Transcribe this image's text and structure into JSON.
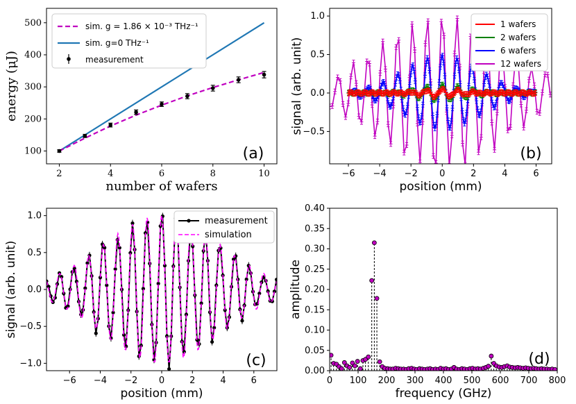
{
  "colors": {
    "magenta": "#c000c0",
    "steel": "#1f77b4",
    "red": "#ff0000",
    "green": "#008000",
    "blue": "#0000ff",
    "black": "#000000"
  },
  "chart_data": [
    {
      "id": "a",
      "type": "line",
      "panel_label": "(a)",
      "xlabel": "number of wafers",
      "ylabel": "energy (μJ)",
      "xlim": [
        1.5,
        10.5
      ],
      "ylim": [
        60,
        545
      ],
      "xticks": [
        2,
        4,
        6,
        8,
        10
      ],
      "yticks": [
        100,
        200,
        300,
        400,
        500
      ],
      "legend": [
        "sim.  g = 1.86 × 10⁻³ THz⁻¹",
        "sim.  g=0 THz⁻¹",
        "measurement"
      ],
      "series": [
        {
          "name": "sim. g=1.86e-3",
          "style": "dashed",
          "color": "#c000c0",
          "x": [
            2,
            3,
            4,
            5,
            6,
            7,
            8,
            9,
            10
          ],
          "y": [
            100,
            140,
            178,
            212,
            243,
            272,
            298,
            322,
            345
          ]
        },
        {
          "name": "sim. g=0",
          "style": "solid",
          "color": "#1f77b4",
          "x": [
            2,
            10
          ],
          "y": [
            100,
            500
          ]
        },
        {
          "name": "measurement",
          "style": "errorbar",
          "color": "#000000",
          "x": [
            2,
            3,
            4,
            5,
            6,
            7,
            8,
            9,
            10
          ],
          "y": [
            100,
            147,
            181,
            221,
            246,
            271,
            296,
            322,
            338
          ],
          "err": [
            4,
            5,
            6,
            7,
            7,
            8,
            9,
            9,
            10
          ]
        }
      ]
    },
    {
      "id": "b",
      "type": "line",
      "panel_label": "(b)",
      "xlabel": "position (mm)",
      "ylabel": "signal (arb. unit)",
      "xlim": [
        -7.2,
        7.0
      ],
      "ylim": [
        -0.92,
        1.1
      ],
      "xticks": [
        -6,
        -4,
        -2,
        0,
        2,
        4,
        6
      ],
      "yticks": [
        -0.5,
        0.0,
        0.5,
        1.0
      ],
      "legend_position": "top-right",
      "series": [
        {
          "name": "1 wafers",
          "color": "#ff0000",
          "amplitude": 0.05,
          "width_mm": 1.2,
          "period_mm": 1.0,
          "range_mm": [
            -6,
            6
          ]
        },
        {
          "name": "2 wafers",
          "color": "#008000",
          "amplitude": 0.1,
          "width_mm": 1.5,
          "period_mm": 1.0,
          "range_mm": [
            -6,
            6
          ]
        },
        {
          "name": "6 wafers",
          "color": "#0000ff",
          "amplitude": 0.48,
          "width_mm": 2.4,
          "period_mm": 0.95,
          "range_mm": [
            -6,
            6
          ]
        },
        {
          "name": "12 wafers",
          "color": "#c000c0",
          "amplitude": 1.0,
          "width_mm": 4.0,
          "period_mm": 0.95,
          "range_mm": [
            -7.2,
            7.0
          ]
        }
      ]
    },
    {
      "id": "c",
      "type": "line",
      "panel_label": "(c)",
      "xlabel": "position (mm)",
      "ylabel": "signal (arb. unit)",
      "xlim": [
        -7.5,
        7.5
      ],
      "ylim": [
        -1.1,
        1.1
      ],
      "xticks": [
        -6,
        -4,
        -2,
        0,
        2,
        4,
        6
      ],
      "yticks": [
        -1.0,
        -0.5,
        0.0,
        0.5,
        1.0
      ],
      "legend_position": "top-right",
      "series": [
        {
          "name": "measurement",
          "color": "#000000",
          "style": "marker-line",
          "amplitude": 1.0,
          "width_mm": 3.8,
          "period_mm": 0.95
        },
        {
          "name": "simulation",
          "color": "#ff00ff",
          "style": "dashed",
          "amplitude": 1.0,
          "width_mm": 3.8,
          "period_mm": 0.95
        }
      ]
    },
    {
      "id": "d",
      "type": "scatter",
      "panel_label": "(d)",
      "xlabel": "frequency (GHz)",
      "ylabel": "amplitude",
      "xlim": [
        0,
        800
      ],
      "ylim": [
        0,
        0.4
      ],
      "xticks": [
        0,
        100,
        200,
        300,
        400,
        500,
        600,
        700,
        800
      ],
      "yticks": [
        0.0,
        0.05,
        0.1,
        0.15,
        0.2,
        0.25,
        0.3,
        0.35,
        0.4
      ],
      "peaks": [
        {
          "x": 148,
          "y": 0.222
        },
        {
          "x": 157,
          "y": 0.315
        },
        {
          "x": 166,
          "y": 0.178
        }
      ],
      "points": [
        {
          "x": 5,
          "y": 0.038
        },
        {
          "x": 14,
          "y": 0.018
        },
        {
          "x": 24,
          "y": 0.016
        },
        {
          "x": 33,
          "y": 0.01
        },
        {
          "x": 42,
          "y": 0.005
        },
        {
          "x": 52,
          "y": 0.02
        },
        {
          "x": 61,
          "y": 0.012
        },
        {
          "x": 70,
          "y": 0.008
        },
        {
          "x": 80,
          "y": 0.019
        },
        {
          "x": 89,
          "y": 0.012
        },
        {
          "x": 98,
          "y": 0.023
        },
        {
          "x": 108,
          "y": 0.005
        },
        {
          "x": 117,
          "y": 0.025
        },
        {
          "x": 126,
          "y": 0.028
        },
        {
          "x": 136,
          "y": 0.034
        },
        {
          "x": 176,
          "y": 0.022
        },
        {
          "x": 185,
          "y": 0.01
        },
        {
          "x": 194,
          "y": 0.006
        },
        {
          "x": 204,
          "y": 0.005
        },
        {
          "x": 213,
          "y": 0.004
        },
        {
          "x": 222,
          "y": 0.004
        },
        {
          "x": 232,
          "y": 0.006
        },
        {
          "x": 241,
          "y": 0.005
        },
        {
          "x": 250,
          "y": 0.004
        },
        {
          "x": 260,
          "y": 0.004
        },
        {
          "x": 269,
          "y": 0.003
        },
        {
          "x": 278,
          "y": 0.005
        },
        {
          "x": 288,
          "y": 0.006
        },
        {
          "x": 297,
          "y": 0.004
        },
        {
          "x": 306,
          "y": 0.003
        },
        {
          "x": 316,
          "y": 0.005
        },
        {
          "x": 325,
          "y": 0.004
        },
        {
          "x": 334,
          "y": 0.003
        },
        {
          "x": 344,
          "y": 0.004
        },
        {
          "x": 353,
          "y": 0.005
        },
        {
          "x": 362,
          "y": 0.003
        },
        {
          "x": 372,
          "y": 0.004
        },
        {
          "x": 381,
          "y": 0.003
        },
        {
          "x": 390,
          "y": 0.006
        },
        {
          "x": 400,
          "y": 0.004
        },
        {
          "x": 409,
          "y": 0.005
        },
        {
          "x": 418,
          "y": 0.003
        },
        {
          "x": 428,
          "y": 0.004
        },
        {
          "x": 437,
          "y": 0.008
        },
        {
          "x": 446,
          "y": 0.004
        },
        {
          "x": 456,
          "y": 0.003
        },
        {
          "x": 465,
          "y": 0.005
        },
        {
          "x": 474,
          "y": 0.004
        },
        {
          "x": 484,
          "y": 0.003
        },
        {
          "x": 493,
          "y": 0.005
        },
        {
          "x": 502,
          "y": 0.006
        },
        {
          "x": 512,
          "y": 0.004
        },
        {
          "x": 521,
          "y": 0.005
        },
        {
          "x": 530,
          "y": 0.004
        },
        {
          "x": 540,
          "y": 0.006
        },
        {
          "x": 549,
          "y": 0.008
        },
        {
          "x": 558,
          "y": 0.011
        },
        {
          "x": 568,
          "y": 0.036
        },
        {
          "x": 577,
          "y": 0.018
        },
        {
          "x": 586,
          "y": 0.012
        },
        {
          "x": 596,
          "y": 0.009
        },
        {
          "x": 605,
          "y": 0.008
        },
        {
          "x": 614,
          "y": 0.01
        },
        {
          "x": 624,
          "y": 0.012
        },
        {
          "x": 633,
          "y": 0.009
        },
        {
          "x": 642,
          "y": 0.008
        },
        {
          "x": 652,
          "y": 0.007
        },
        {
          "x": 661,
          "y": 0.008
        },
        {
          "x": 670,
          "y": 0.007
        },
        {
          "x": 680,
          "y": 0.006
        },
        {
          "x": 689,
          "y": 0.007
        },
        {
          "x": 698,
          "y": 0.006
        },
        {
          "x": 708,
          "y": 0.005
        },
        {
          "x": 717,
          "y": 0.006
        },
        {
          "x": 726,
          "y": 0.005
        },
        {
          "x": 736,
          "y": 0.004
        },
        {
          "x": 745,
          "y": 0.005
        },
        {
          "x": 754,
          "y": 0.004
        },
        {
          "x": 764,
          "y": 0.004
        },
        {
          "x": 773,
          "y": 0.003
        },
        {
          "x": 782,
          "y": 0.004
        },
        {
          "x": 792,
          "y": 0.003
        }
      ]
    }
  ]
}
